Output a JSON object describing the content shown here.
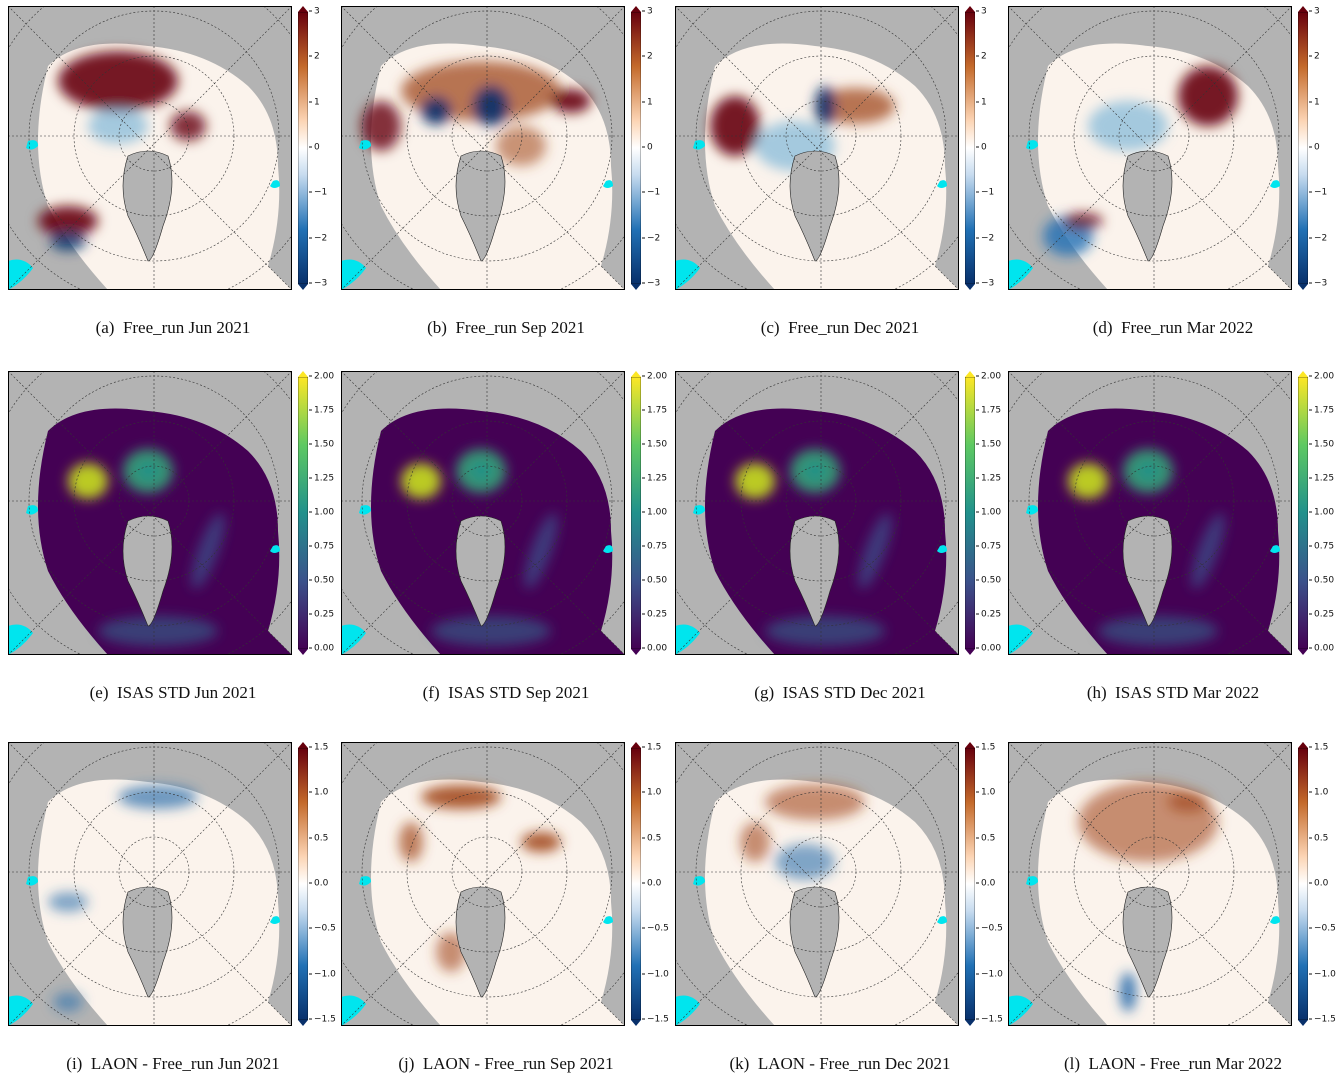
{
  "rows": [
    {
      "scale": "div",
      "ticks": [
        "3",
        "2",
        "1",
        "0",
        "−1",
        "−2",
        "−3"
      ],
      "panels": [
        {
          "label": "(a)",
          "title": "Free_run Jun 2021",
          "pattern": "free_jun"
        },
        {
          "label": "(b)",
          "title": "Free_run Sep 2021",
          "pattern": "free_sep"
        },
        {
          "label": "(c)",
          "title": "Free_run Dec 2021",
          "pattern": "free_dec"
        },
        {
          "label": "(d)",
          "title": "Free_run Mar 2022",
          "pattern": "free_mar"
        }
      ]
    },
    {
      "scale": "seq",
      "ticks": [
        "2.00",
        "1.75",
        "1.50",
        "1.25",
        "1.00",
        "0.75",
        "0.50",
        "0.25",
        "0.00"
      ],
      "panels": [
        {
          "label": "(e)",
          "title": "ISAS STD Jun 2021",
          "pattern": "std"
        },
        {
          "label": "(f)",
          "title": "ISAS STD Sep 2021",
          "pattern": "std"
        },
        {
          "label": "(g)",
          "title": "ISAS STD Dec 2021",
          "pattern": "std"
        },
        {
          "label": "(h)",
          "title": "ISAS STD Mar 2022",
          "pattern": "std"
        }
      ]
    },
    {
      "scale": "div",
      "ticks": [
        "1.5",
        "1.0",
        "0.5",
        "0.0",
        "−0.5",
        "−1.0",
        "−1.5"
      ],
      "panels": [
        {
          "label": "(i)",
          "title": "LAON - Free_run Jun 2021",
          "pattern": "diff_jun"
        },
        {
          "label": "(j)",
          "title": "LAON - Free_run Sep 2021",
          "pattern": "diff_sep"
        },
        {
          "label": "(k)",
          "title": "LAON - Free_run Dec 2021",
          "pattern": "diff_dec"
        },
        {
          "label": "(l)",
          "title": "LAON - Free_run Mar 2022",
          "pattern": "diff_mar"
        }
      ]
    }
  ],
  "colors": {
    "land": "#b3b3b3",
    "lake": "#00e5ee",
    "div_low": "#08306b",
    "div_mid": "#ffffff",
    "div_high": "#67000d",
    "seq_low": "#440154",
    "seq_high": "#fde725"
  }
}
